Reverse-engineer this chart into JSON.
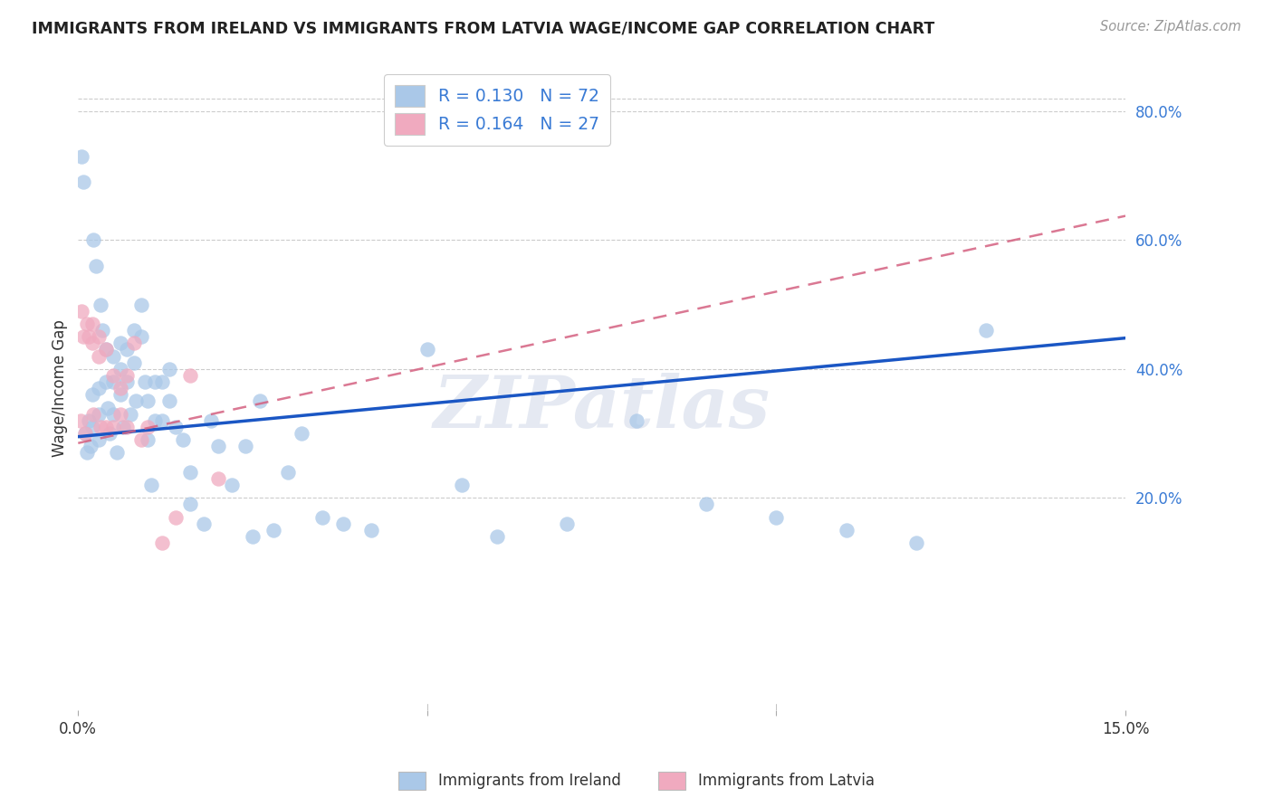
{
  "title": "IMMIGRANTS FROM IRELAND VS IMMIGRANTS FROM LATVIA WAGE/INCOME GAP CORRELATION CHART",
  "source": "Source: ZipAtlas.com",
  "ylabel": "Wage/Income Gap",
  "x_min": 0.0,
  "x_max": 0.15,
  "y_min": -0.13,
  "y_max": 0.87,
  "y_ticks_right": [
    0.2,
    0.4,
    0.6,
    0.8
  ],
  "y_tick_labels_right": [
    "20.0%",
    "40.0%",
    "60.0%",
    "80.0%"
  ],
  "ireland_R": 0.13,
  "ireland_N": 72,
  "latvia_R": 0.164,
  "latvia_N": 27,
  "ireland_color": "#aac8e8",
  "latvia_color": "#f0aabf",
  "ireland_line_color": "#1a56c4",
  "latvia_line_color": "#d46080",
  "background_color": "#ffffff",
  "grid_color": "#cccccc",
  "legend_label_ireland": "Immigrants from Ireland",
  "legend_label_latvia": "Immigrants from Latvia",
  "watermark": "ZIPatlas",
  "ireland_intercept": 0.295,
  "ireland_slope": 1.02,
  "latvia_intercept": 0.285,
  "latvia_slope": 2.35,
  "ireland_x": [
    0.0005,
    0.0008,
    0.001,
    0.0012,
    0.0015,
    0.0018,
    0.002,
    0.002,
    0.0022,
    0.0025,
    0.003,
    0.003,
    0.003,
    0.0032,
    0.0035,
    0.004,
    0.004,
    0.0042,
    0.0045,
    0.005,
    0.005,
    0.005,
    0.0055,
    0.006,
    0.006,
    0.006,
    0.0065,
    0.007,
    0.007,
    0.0075,
    0.008,
    0.008,
    0.0082,
    0.009,
    0.009,
    0.0095,
    0.01,
    0.01,
    0.0105,
    0.011,
    0.011,
    0.012,
    0.012,
    0.013,
    0.013,
    0.014,
    0.015,
    0.016,
    0.016,
    0.018,
    0.019,
    0.02,
    0.022,
    0.024,
    0.025,
    0.026,
    0.028,
    0.03,
    0.032,
    0.035,
    0.038,
    0.042,
    0.05,
    0.055,
    0.06,
    0.07,
    0.08,
    0.09,
    0.1,
    0.11,
    0.12,
    0.13
  ],
  "ireland_y": [
    0.73,
    0.69,
    0.3,
    0.27,
    0.32,
    0.28,
    0.36,
    0.31,
    0.6,
    0.56,
    0.37,
    0.33,
    0.29,
    0.5,
    0.46,
    0.43,
    0.38,
    0.34,
    0.3,
    0.42,
    0.38,
    0.33,
    0.27,
    0.44,
    0.4,
    0.36,
    0.31,
    0.43,
    0.38,
    0.33,
    0.46,
    0.41,
    0.35,
    0.5,
    0.45,
    0.38,
    0.35,
    0.29,
    0.22,
    0.38,
    0.32,
    0.38,
    0.32,
    0.4,
    0.35,
    0.31,
    0.29,
    0.24,
    0.19,
    0.16,
    0.32,
    0.28,
    0.22,
    0.28,
    0.14,
    0.35,
    0.15,
    0.24,
    0.3,
    0.17,
    0.16,
    0.15,
    0.43,
    0.22,
    0.14,
    0.16,
    0.32,
    0.19,
    0.17,
    0.15,
    0.13,
    0.46
  ],
  "latvia_x": [
    0.0003,
    0.0005,
    0.0008,
    0.001,
    0.0012,
    0.0015,
    0.002,
    0.002,
    0.0022,
    0.003,
    0.003,
    0.0032,
    0.004,
    0.004,
    0.005,
    0.005,
    0.006,
    0.006,
    0.007,
    0.007,
    0.008,
    0.009,
    0.01,
    0.012,
    0.014,
    0.016,
    0.02
  ],
  "latvia_y": [
    0.32,
    0.49,
    0.45,
    0.3,
    0.47,
    0.45,
    0.47,
    0.44,
    0.33,
    0.45,
    0.42,
    0.31,
    0.43,
    0.31,
    0.39,
    0.31,
    0.37,
    0.33,
    0.39,
    0.31,
    0.44,
    0.29,
    0.31,
    0.13,
    0.17,
    0.39,
    0.23
  ]
}
